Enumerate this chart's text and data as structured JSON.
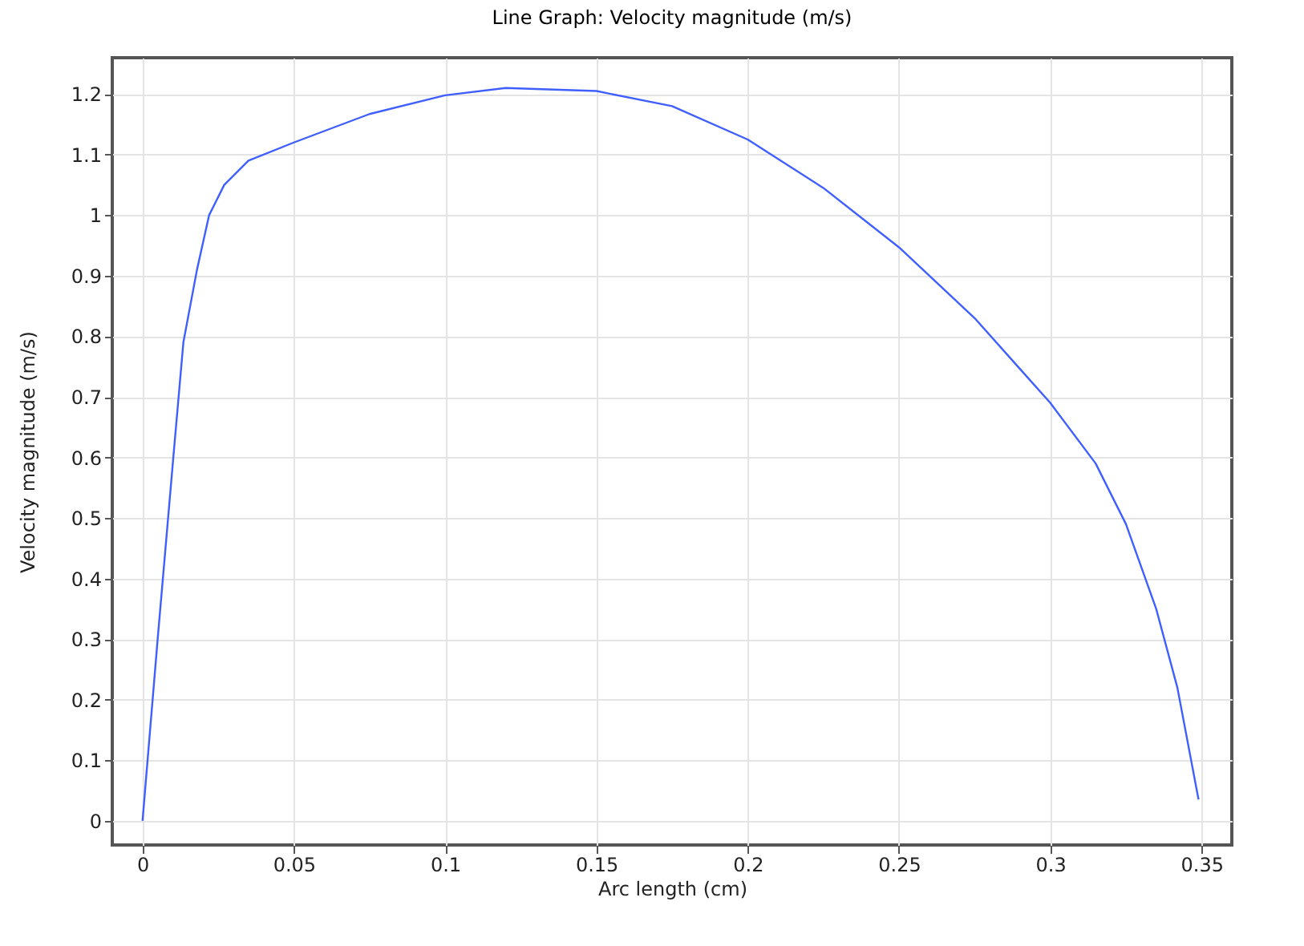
{
  "chart_data": {
    "type": "line",
    "title": "Line Graph: Velocity magnitude (m/s)",
    "xlabel": "Arc length (cm)",
    "ylabel": "Velocity magnitude (m/s)",
    "x": [
      0,
      0.005,
      0.01,
      0.0135,
      0.018,
      0.022,
      0.027,
      0.035,
      0.05,
      0.075,
      0.1,
      0.12,
      0.15,
      0.175,
      0.2,
      0.225,
      0.25,
      0.275,
      0.3,
      0.315,
      0.325,
      0.335,
      0.342,
      0.349
    ],
    "series": [
      {
        "color": "#3f5fff",
        "values": [
          0,
          0.3,
          0.59,
          0.79,
          0.91,
          1.0,
          1.05,
          1.09,
          1.12,
          1.167,
          1.198,
          1.21,
          1.205,
          1.18,
          1.125,
          1.045,
          0.947,
          0.83,
          0.69,
          0.59,
          0.49,
          0.35,
          0.22,
          0.035
        ]
      }
    ],
    "xlim": [
      -0.01,
      0.36
    ],
    "xticks": [
      0,
      0.05,
      0.1,
      0.15,
      0.2,
      0.25,
      0.3,
      0.35
    ],
    "ylim": [
      -0.04,
      1.26
    ],
    "yticks": [
      0,
      0.1,
      0.2,
      0.3,
      0.4,
      0.5,
      0.6,
      0.7,
      0.8,
      0.9,
      1,
      1.1,
      1.2
    ],
    "grid": true,
    "marker": "none",
    "line_style": "solid"
  }
}
